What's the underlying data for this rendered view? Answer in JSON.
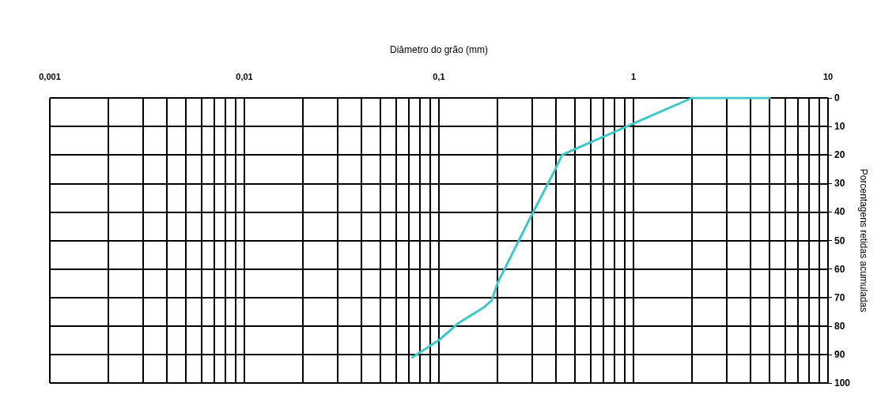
{
  "chart_data": {
    "type": "line",
    "xlabel": "Diâmetro do grão (mm)",
    "ylabel": "Porcentagens retidas acumuladas",
    "x": [
      0.073,
      0.1,
      0.126,
      0.17,
      0.187,
      0.2,
      0.29,
      0.39,
      0.43,
      0.5,
      1,
      2,
      5
    ],
    "series": [
      {
        "color": "#3cc8c8",
        "values": [
          91,
          85,
          79,
          73.5,
          71,
          65,
          43,
          26,
          20,
          18,
          9,
          0,
          0
        ]
      }
    ],
    "xlim": [
      0.001,
      10
    ],
    "xticks": [
      {
        "value": 0.001,
        "label": "0,001"
      },
      {
        "value": 0.002,
        "label": null
      },
      {
        "value": 0.003,
        "label": null
      },
      {
        "value": 0.004,
        "label": null
      },
      {
        "value": 0.005,
        "label": null
      },
      {
        "value": 0.006,
        "label": null
      },
      {
        "value": 0.007,
        "label": null
      },
      {
        "value": 0.008,
        "label": null
      },
      {
        "value": 0.009,
        "label": null
      },
      {
        "value": 0.01,
        "label": "0,01"
      },
      {
        "value": 0.02,
        "label": null
      },
      {
        "value": 0.03,
        "label": null
      },
      {
        "value": 0.04,
        "label": null
      },
      {
        "value": 0.05,
        "label": null
      },
      {
        "value": 0.06,
        "label": null
      },
      {
        "value": 0.07,
        "label": null
      },
      {
        "value": 0.08,
        "label": null
      },
      {
        "value": 0.09,
        "label": null
      },
      {
        "value": 0.1,
        "label": "0,1"
      },
      {
        "value": 0.2,
        "label": null
      },
      {
        "value": 0.3,
        "label": null
      },
      {
        "value": 0.4,
        "label": null
      },
      {
        "value": 0.5,
        "label": null
      },
      {
        "value": 0.6,
        "label": null
      },
      {
        "value": 0.7,
        "label": null
      },
      {
        "value": 0.8,
        "label": null
      },
      {
        "value": 0.9,
        "label": null
      },
      1,
      {
        "value": 2,
        "label": null
      },
      {
        "value": 3,
        "label": null
      },
      {
        "value": 4,
        "label": null
      },
      {
        "value": 5,
        "label": null
      },
      {
        "value": 6,
        "label": null
      },
      {
        "value": 7,
        "label": null
      },
      {
        "value": 8,
        "label": null
      },
      {
        "value": 9,
        "label": null
      },
      10
    ],
    "ylim": [
      100,
      0
    ],
    "yticks": [
      0,
      10,
      20,
      30,
      40,
      50,
      60,
      70,
      80,
      90,
      100
    ],
    "log": "x",
    "grid": true,
    "marker": "none",
    "line_style": "solid"
  }
}
